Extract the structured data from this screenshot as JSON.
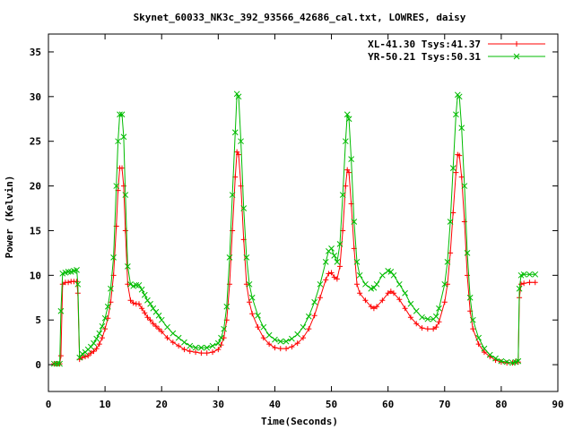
{
  "chart_data": {
    "type": "line",
    "title": "Skynet_60033_NK3c_392_93566_42686_cal.txt, LOWRES, daisy",
    "xlabel": "Time(Seconds)",
    "ylabel": "Power (Kelvin)",
    "xlim": [
      0,
      90
    ],
    "ylim": [
      -3,
      37
    ],
    "xticks": [
      0,
      10,
      20,
      30,
      40,
      50,
      60,
      70,
      80,
      90
    ],
    "yticks": [
      0,
      5,
      10,
      15,
      20,
      25,
      30,
      35
    ],
    "grid": false,
    "legend_position": "top-right",
    "series": [
      {
        "name": "XL-41.30 Tsys:41.37",
        "color": "#ff0000",
        "marker": "plus",
        "points": [
          [
            1.0,
            0.1
          ],
          [
            1.5,
            0.1
          ],
          [
            2.0,
            0.1
          ],
          [
            2.2,
            1.0
          ],
          [
            2.5,
            9.0
          ],
          [
            3.0,
            9.2
          ],
          [
            3.5,
            9.2
          ],
          [
            4.0,
            9.3
          ],
          [
            4.5,
            9.3
          ],
          [
            5.0,
            9.3
          ],
          [
            5.2,
            8.0
          ],
          [
            5.5,
            0.6
          ],
          [
            6.0,
            0.8
          ],
          [
            6.5,
            0.9
          ],
          [
            7.0,
            1.0
          ],
          [
            7.5,
            1.3
          ],
          [
            8.0,
            1.5
          ],
          [
            8.5,
            1.8
          ],
          [
            9.0,
            2.3
          ],
          [
            9.5,
            3.0
          ],
          [
            10.0,
            4.0
          ],
          [
            10.5,
            5.2
          ],
          [
            11.0,
            7.0
          ],
          [
            11.5,
            10.0
          ],
          [
            12.0,
            15.5
          ],
          [
            12.3,
            19.5
          ],
          [
            12.6,
            22.0
          ],
          [
            13.0,
            22.0
          ],
          [
            13.3,
            20.0
          ],
          [
            13.6,
            15.0
          ],
          [
            14.0,
            9.0
          ],
          [
            14.5,
            7.2
          ],
          [
            15.0,
            6.9
          ],
          [
            15.5,
            6.8
          ],
          [
            16.0,
            6.8
          ],
          [
            16.5,
            6.3
          ],
          [
            17.0,
            5.8
          ],
          [
            17.5,
            5.3
          ],
          [
            18.0,
            5.0
          ],
          [
            18.5,
            4.6
          ],
          [
            19.0,
            4.3
          ],
          [
            19.5,
            4.0
          ],
          [
            20.0,
            3.7
          ],
          [
            21.0,
            3.0
          ],
          [
            22.0,
            2.5
          ],
          [
            23.0,
            2.1
          ],
          [
            24.0,
            1.7
          ],
          [
            25.0,
            1.5
          ],
          [
            26.0,
            1.4
          ],
          [
            27.0,
            1.3
          ],
          [
            28.0,
            1.3
          ],
          [
            29.0,
            1.4
          ],
          [
            30.0,
            1.7
          ],
          [
            30.5,
            2.2
          ],
          [
            31.0,
            3.0
          ],
          [
            31.5,
            5.0
          ],
          [
            32.0,
            9.0
          ],
          [
            32.5,
            15.0
          ],
          [
            33.0,
            21.0
          ],
          [
            33.3,
            23.8
          ],
          [
            33.6,
            23.5
          ],
          [
            34.0,
            20.0
          ],
          [
            34.5,
            14.0
          ],
          [
            35.0,
            9.0
          ],
          [
            35.5,
            7.0
          ],
          [
            36.0,
            5.7
          ],
          [
            37.0,
            4.2
          ],
          [
            38.0,
            3.0
          ],
          [
            39.0,
            2.3
          ],
          [
            40.0,
            1.9
          ],
          [
            41.0,
            1.8
          ],
          [
            42.0,
            1.8
          ],
          [
            43.0,
            2.0
          ],
          [
            44.0,
            2.4
          ],
          [
            45.0,
            3.0
          ],
          [
            46.0,
            4.0
          ],
          [
            47.0,
            5.5
          ],
          [
            48.0,
            7.5
          ],
          [
            49.0,
            9.5
          ],
          [
            49.5,
            10.2
          ],
          [
            50.0,
            10.3
          ],
          [
            50.5,
            9.8
          ],
          [
            51.0,
            9.6
          ],
          [
            51.5,
            11.0
          ],
          [
            52.0,
            15.0
          ],
          [
            52.5,
            20.0
          ],
          [
            52.8,
            21.8
          ],
          [
            53.1,
            21.5
          ],
          [
            53.5,
            18.0
          ],
          [
            54.0,
            13.0
          ],
          [
            54.5,
            9.0
          ],
          [
            55.0,
            8.0
          ],
          [
            56.0,
            7.2
          ],
          [
            57.0,
            6.5
          ],
          [
            57.5,
            6.3
          ],
          [
            58.0,
            6.5
          ],
          [
            59.0,
            7.2
          ],
          [
            60.0,
            8.0
          ],
          [
            60.5,
            8.2
          ],
          [
            61.0,
            8.0
          ],
          [
            62.0,
            7.3
          ],
          [
            63.0,
            6.3
          ],
          [
            64.0,
            5.3
          ],
          [
            65.0,
            4.6
          ],
          [
            66.0,
            4.1
          ],
          [
            67.0,
            4.0
          ],
          [
            68.0,
            4.0
          ],
          [
            68.5,
            4.2
          ],
          [
            69.0,
            4.8
          ],
          [
            70.0,
            7.0
          ],
          [
            70.5,
            9.0
          ],
          [
            71.0,
            12.5
          ],
          [
            71.5,
            17.0
          ],
          [
            72.0,
            21.5
          ],
          [
            72.3,
            23.5
          ],
          [
            72.6,
            23.4
          ],
          [
            73.0,
            21.0
          ],
          [
            73.5,
            16.0
          ],
          [
            74.0,
            10.0
          ],
          [
            74.5,
            6.0
          ],
          [
            75.0,
            4.0
          ],
          [
            76.0,
            2.3
          ],
          [
            77.0,
            1.4
          ],
          [
            78.0,
            0.9
          ],
          [
            79.0,
            0.5
          ],
          [
            80.0,
            0.3
          ],
          [
            81.0,
            0.2
          ],
          [
            82.0,
            0.2
          ],
          [
            82.5,
            0.3
          ],
          [
            83.0,
            0.3
          ],
          [
            83.2,
            7.5
          ],
          [
            83.5,
            9.0
          ],
          [
            84.0,
            9.1
          ],
          [
            85.0,
            9.2
          ],
          [
            86.0,
            9.2
          ]
        ]
      },
      {
        "name": "YR-50.21 Tsys:50.31",
        "color": "#00bb00",
        "marker": "x",
        "points": [
          [
            1.0,
            0.1
          ],
          [
            1.5,
            0.1
          ],
          [
            2.0,
            0.1
          ],
          [
            2.2,
            6.0
          ],
          [
            2.5,
            10.2
          ],
          [
            3.0,
            10.3
          ],
          [
            3.5,
            10.4
          ],
          [
            4.0,
            10.4
          ],
          [
            4.5,
            10.5
          ],
          [
            5.0,
            10.6
          ],
          [
            5.2,
            9.0
          ],
          [
            5.5,
            0.8
          ],
          [
            6.0,
            1.2
          ],
          [
            6.5,
            1.4
          ],
          [
            7.0,
            1.7
          ],
          [
            7.5,
            2.0
          ],
          [
            8.0,
            2.4
          ],
          [
            8.5,
            2.9
          ],
          [
            9.0,
            3.5
          ],
          [
            9.5,
            4.3
          ],
          [
            10.0,
            5.2
          ],
          [
            10.5,
            6.5
          ],
          [
            11.0,
            8.5
          ],
          [
            11.5,
            12.0
          ],
          [
            12.0,
            20.0
          ],
          [
            12.3,
            25.0
          ],
          [
            12.6,
            28.0
          ],
          [
            13.0,
            28.0
          ],
          [
            13.3,
            25.5
          ],
          [
            13.6,
            19.0
          ],
          [
            14.0,
            11.0
          ],
          [
            14.5,
            9.0
          ],
          [
            15.0,
            8.8
          ],
          [
            15.5,
            8.9
          ],
          [
            16.0,
            8.9
          ],
          [
            16.5,
            8.4
          ],
          [
            17.0,
            7.8
          ],
          [
            17.5,
            7.2
          ],
          [
            18.0,
            6.8
          ],
          [
            18.5,
            6.3
          ],
          [
            19.0,
            5.9
          ],
          [
            19.5,
            5.5
          ],
          [
            20.0,
            5.0
          ],
          [
            21.0,
            4.2
          ],
          [
            22.0,
            3.5
          ],
          [
            23.0,
            3.0
          ],
          [
            24.0,
            2.5
          ],
          [
            25.0,
            2.1
          ],
          [
            26.0,
            1.9
          ],
          [
            27.0,
            1.9
          ],
          [
            28.0,
            1.9
          ],
          [
            29.0,
            2.1
          ],
          [
            30.0,
            2.4
          ],
          [
            30.5,
            3.0
          ],
          [
            31.0,
            4.0
          ],
          [
            31.5,
            6.5
          ],
          [
            32.0,
            12.0
          ],
          [
            32.5,
            19.0
          ],
          [
            33.0,
            26.0
          ],
          [
            33.3,
            30.3
          ],
          [
            33.6,
            30.0
          ],
          [
            34.0,
            25.0
          ],
          [
            34.5,
            17.5
          ],
          [
            35.0,
            12.0
          ],
          [
            35.5,
            9.0
          ],
          [
            36.0,
            7.5
          ],
          [
            37.0,
            5.5
          ],
          [
            38.0,
            4.2
          ],
          [
            39.0,
            3.3
          ],
          [
            40.0,
            2.8
          ],
          [
            41.0,
            2.6
          ],
          [
            42.0,
            2.6
          ],
          [
            43.0,
            2.9
          ],
          [
            44.0,
            3.4
          ],
          [
            45.0,
            4.2
          ],
          [
            46.0,
            5.4
          ],
          [
            47.0,
            7.0
          ],
          [
            48.0,
            9.0
          ],
          [
            49.0,
            11.5
          ],
          [
            49.5,
            12.7
          ],
          [
            50.0,
            13.0
          ],
          [
            50.5,
            12.2
          ],
          [
            51.0,
            11.5
          ],
          [
            51.5,
            13.5
          ],
          [
            52.0,
            19.0
          ],
          [
            52.5,
            25.0
          ],
          [
            52.8,
            28.0
          ],
          [
            53.1,
            27.5
          ],
          [
            53.5,
            23.0
          ],
          [
            54.0,
            16.0
          ],
          [
            54.5,
            11.5
          ],
          [
            55.0,
            10.0
          ],
          [
            56.0,
            9.0
          ],
          [
            57.0,
            8.5
          ],
          [
            57.5,
            8.6
          ],
          [
            58.0,
            9.0
          ],
          [
            59.0,
            10.0
          ],
          [
            60.0,
            10.5
          ],
          [
            60.5,
            10.4
          ],
          [
            61.0,
            10.0
          ],
          [
            62.0,
            9.0
          ],
          [
            63.0,
            8.0
          ],
          [
            64.0,
            6.8
          ],
          [
            65.0,
            6.0
          ],
          [
            66.0,
            5.3
          ],
          [
            67.0,
            5.1
          ],
          [
            68.0,
            5.1
          ],
          [
            68.5,
            5.4
          ],
          [
            69.0,
            6.3
          ],
          [
            70.0,
            9.0
          ],
          [
            70.5,
            11.5
          ],
          [
            71.0,
            16.0
          ],
          [
            71.5,
            22.0
          ],
          [
            72.0,
            28.0
          ],
          [
            72.3,
            30.2
          ],
          [
            72.6,
            30.0
          ],
          [
            73.0,
            26.5
          ],
          [
            73.5,
            20.0
          ],
          [
            74.0,
            12.5
          ],
          [
            74.5,
            7.5
          ],
          [
            75.0,
            5.0
          ],
          [
            76.0,
            3.0
          ],
          [
            77.0,
            1.8
          ],
          [
            78.0,
            1.1
          ],
          [
            79.0,
            0.7
          ],
          [
            80.0,
            0.4
          ],
          [
            81.0,
            0.3
          ],
          [
            82.0,
            0.2
          ],
          [
            82.5,
            0.3
          ],
          [
            83.0,
            0.4
          ],
          [
            83.2,
            8.5
          ],
          [
            83.5,
            10.0
          ],
          [
            84.0,
            10.1
          ],
          [
            85.0,
            10.1
          ],
          [
            86.0,
            10.1
          ]
        ]
      }
    ]
  }
}
